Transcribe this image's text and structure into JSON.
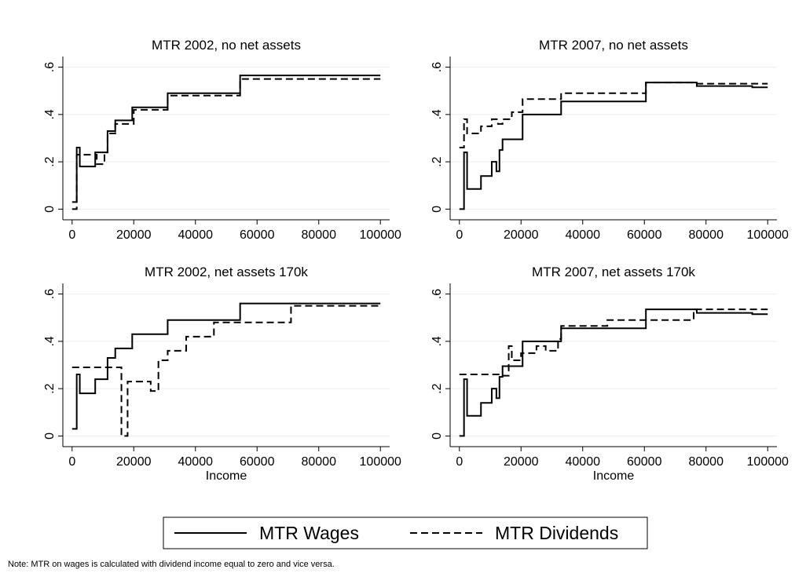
{
  "chart_data": [
    {
      "type": "line",
      "title": "MTR 2002, no net assets",
      "xlim": [
        -3000,
        103000
      ],
      "xticks": [
        0,
        20000,
        40000,
        60000,
        80000,
        100000
      ],
      "ylim": [
        -0.045,
        0.645
      ],
      "yticks": [
        {
          "value": 0,
          "label": "0"
        },
        {
          "value": 0.2,
          "label": ".2"
        },
        {
          "value": 0.4,
          "label": ".4"
        },
        {
          "value": 0.6,
          "label": ".6"
        }
      ],
      "grid": true,
      "series": [
        {
          "name": "MTR Wages",
          "color": "#000000",
          "dash": "solid",
          "x": [
            0,
            1500,
            1500,
            2500,
            2500,
            7500,
            7500,
            11500,
            11500,
            14000,
            14000,
            19500,
            19500,
            31000,
            31000,
            54500,
            54500,
            100000
          ],
          "values": [
            0.03,
            0.03,
            0.26,
            0.26,
            0.18,
            0.18,
            0.24,
            0.24,
            0.33,
            0.33,
            0.375,
            0.375,
            0.43,
            0.43,
            0.49,
            0.49,
            0.565,
            0.565
          ]
        },
        {
          "name": "MTR Dividends",
          "color": "#000000",
          "dash": "dashed",
          "x": [
            0,
            1500,
            1500,
            8000,
            8000,
            10500,
            10500,
            11500,
            11500,
            14000,
            14000,
            20000,
            20000,
            31000,
            31000,
            54500,
            54500,
            100000
          ],
          "values": [
            0,
            0,
            0.23,
            0.23,
            0.19,
            0.19,
            0.24,
            0.24,
            0.32,
            0.32,
            0.36,
            0.36,
            0.42,
            0.42,
            0.48,
            0.48,
            0.55,
            0.55
          ]
        }
      ]
    },
    {
      "type": "line",
      "title": "MTR 2007, no net assets",
      "xlim": [
        -3000,
        103000
      ],
      "xticks": [
        0,
        20000,
        40000,
        60000,
        80000,
        100000
      ],
      "ylim": [
        -0.045,
        0.645
      ],
      "yticks": [
        {
          "value": 0,
          "label": "0"
        },
        {
          "value": 0.2,
          "label": ".2"
        },
        {
          "value": 0.4,
          "label": ".4"
        },
        {
          "value": 0.6,
          "label": ".6"
        }
      ],
      "grid": true,
      "series": [
        {
          "name": "MTR Wages",
          "color": "#000000",
          "dash": "solid",
          "x": [
            0,
            1500,
            1500,
            2500,
            2500,
            7000,
            7000,
            10500,
            10500,
            12000,
            12000,
            13000,
            13000,
            14000,
            14000,
            20500,
            20500,
            33000,
            33000,
            60500,
            60500,
            77000,
            77000,
            95000,
            95000,
            100000
          ],
          "values": [
            0,
            0,
            0.24,
            0.24,
            0.085,
            0.085,
            0.14,
            0.14,
            0.2,
            0.2,
            0.16,
            0.16,
            0.25,
            0.25,
            0.295,
            0.295,
            0.4,
            0.4,
            0.455,
            0.455,
            0.535,
            0.535,
            0.52,
            0.52,
            0.515,
            0.515
          ]
        },
        {
          "name": "MTR Dividends",
          "color": "#000000",
          "dash": "dashed",
          "x": [
            0,
            1500,
            1500,
            2500,
            2500,
            7000,
            7000,
            10500,
            10500,
            12500,
            12500,
            14000,
            14000,
            17000,
            17000,
            20500,
            20500,
            33000,
            33000,
            60500,
            60500,
            77000,
            77000,
            100000
          ],
          "values": [
            0.26,
            0.26,
            0.38,
            0.38,
            0.32,
            0.32,
            0.35,
            0.35,
            0.38,
            0.38,
            0.36,
            0.36,
            0.38,
            0.38,
            0.41,
            0.41,
            0.465,
            0.465,
            0.49,
            0.49,
            0.535,
            0.535,
            0.53,
            0.53
          ]
        }
      ]
    },
    {
      "type": "line",
      "title": "MTR 2002, net assets 170k",
      "xlabel": "Income",
      "xlim": [
        -3000,
        103000
      ],
      "xticks": [
        0,
        20000,
        40000,
        60000,
        80000,
        100000
      ],
      "ylim": [
        -0.045,
        0.645
      ],
      "yticks": [
        {
          "value": 0,
          "label": "0"
        },
        {
          "value": 0.2,
          "label": ".2"
        },
        {
          "value": 0.4,
          "label": ".4"
        },
        {
          "value": 0.6,
          "label": ".6"
        }
      ],
      "grid": true,
      "series": [
        {
          "name": "MTR Wages",
          "color": "#000000",
          "dash": "solid",
          "x": [
            0,
            1500,
            1500,
            2500,
            2500,
            7500,
            7500,
            11500,
            11500,
            14000,
            14000,
            19500,
            19500,
            31000,
            31000,
            54500,
            54500,
            100000
          ],
          "values": [
            0.03,
            0.03,
            0.26,
            0.26,
            0.18,
            0.18,
            0.24,
            0.24,
            0.33,
            0.33,
            0.37,
            0.37,
            0.43,
            0.43,
            0.49,
            0.49,
            0.56,
            0.56
          ]
        },
        {
          "name": "MTR Dividends",
          "color": "#000000",
          "dash": "dashed",
          "x": [
            0,
            16000,
            16000,
            18000,
            18000,
            25500,
            25500,
            28000,
            28000,
            31000,
            31000,
            37000,
            37000,
            46000,
            46000,
            71000,
            71000,
            100000
          ],
          "values": [
            0.29,
            0.29,
            0,
            0,
            0.23,
            0.23,
            0.19,
            0.19,
            0.32,
            0.32,
            0.36,
            0.36,
            0.42,
            0.42,
            0.48,
            0.48,
            0.55,
            0.55
          ]
        }
      ]
    },
    {
      "type": "line",
      "title": "MTR 2007, net assets 170k",
      "xlabel": "Income",
      "xlim": [
        -3000,
        103000
      ],
      "xticks": [
        0,
        20000,
        40000,
        60000,
        80000,
        100000
      ],
      "ylim": [
        -0.045,
        0.645
      ],
      "yticks": [
        {
          "value": 0,
          "label": "0"
        },
        {
          "value": 0.2,
          "label": ".2"
        },
        {
          "value": 0.4,
          "label": ".4"
        },
        {
          "value": 0.6,
          "label": ".6"
        }
      ],
      "grid": true,
      "series": [
        {
          "name": "MTR Wages",
          "color": "#000000",
          "dash": "solid",
          "x": [
            0,
            1500,
            1500,
            2500,
            2500,
            7000,
            7000,
            10500,
            10500,
            12000,
            12000,
            13000,
            13000,
            14000,
            14000,
            20500,
            20500,
            33000,
            33000,
            60500,
            60500,
            77000,
            77000,
            95000,
            95000,
            100000
          ],
          "values": [
            0,
            0,
            0.24,
            0.24,
            0.085,
            0.085,
            0.14,
            0.14,
            0.2,
            0.2,
            0.16,
            0.16,
            0.25,
            0.25,
            0.295,
            0.295,
            0.4,
            0.4,
            0.455,
            0.455,
            0.535,
            0.535,
            0.52,
            0.52,
            0.515,
            0.515
          ]
        },
        {
          "name": "MTR Dividends",
          "color": "#000000",
          "dash": "dashed",
          "x": [
            0,
            13000,
            13000,
            16000,
            16000,
            17000,
            17000,
            20000,
            20000,
            25000,
            25000,
            28000,
            28000,
            32000,
            32000,
            33000,
            33000,
            48000,
            48000,
            76000,
            76000,
            100000
          ],
          "values": [
            0.26,
            0.26,
            0.255,
            0.255,
            0.38,
            0.38,
            0.32,
            0.32,
            0.35,
            0.35,
            0.38,
            0.38,
            0.36,
            0.36,
            0.41,
            0.41,
            0.465,
            0.465,
            0.49,
            0.49,
            0.535,
            0.535
          ]
        }
      ]
    }
  ],
  "note": "Note: MTR on wages is calculated with dividend income equal to zero and vice versa."
}
